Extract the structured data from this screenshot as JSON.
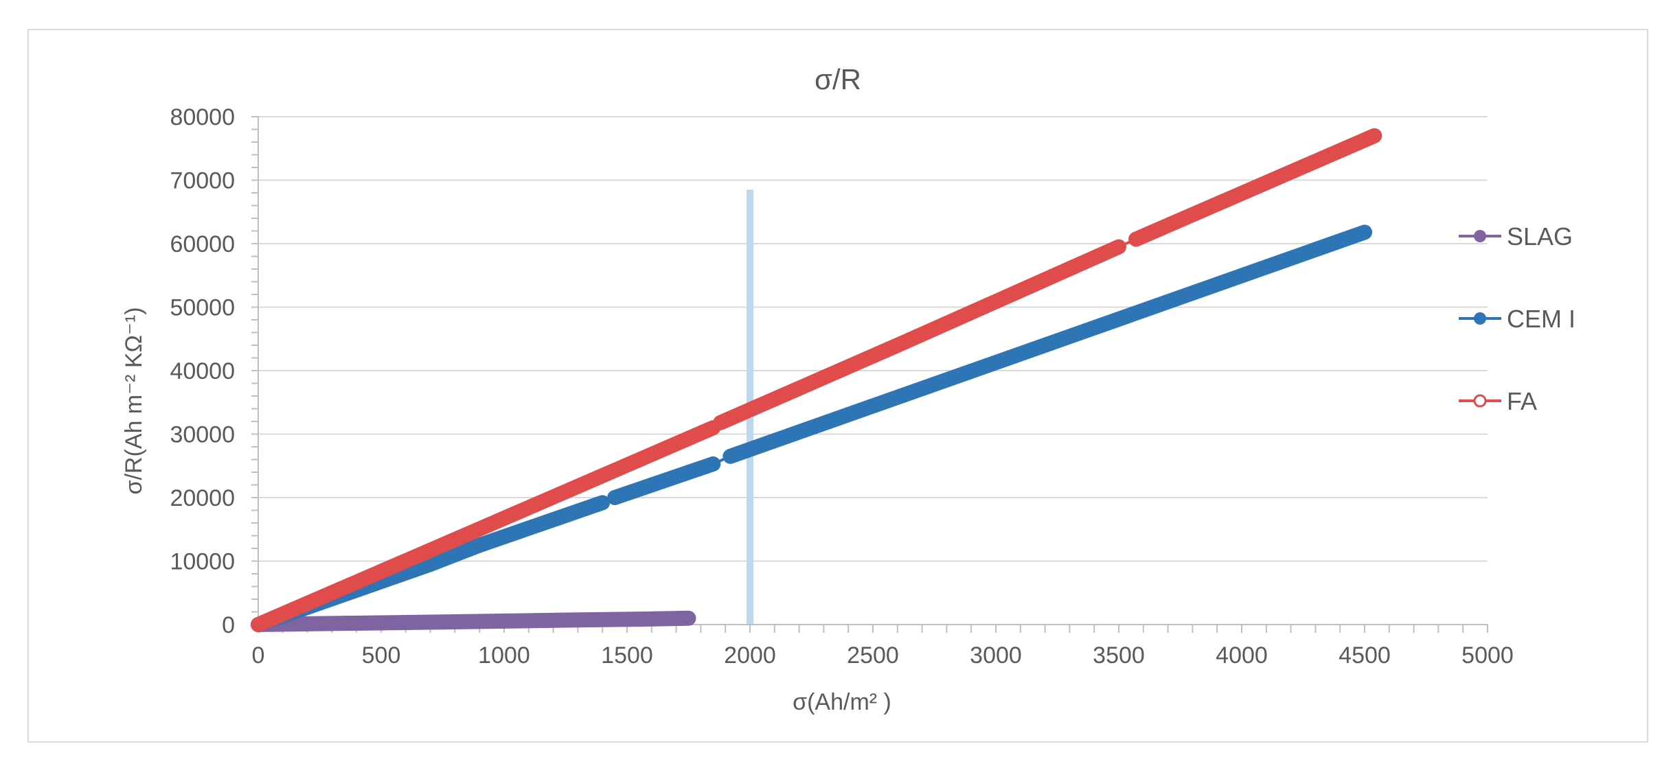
{
  "chart_data": {
    "type": "scatter",
    "title": "σ/R",
    "xlabel": "σ(Ah/m² )",
    "ylabel": "σ/R(Ah m⁻² KΩ⁻¹)",
    "xlim": [
      0,
      5000
    ],
    "ylim": [
      0,
      80000
    ],
    "x_ticks": [
      0,
      500,
      1000,
      1500,
      2000,
      2500,
      3000,
      3500,
      4000,
      4500,
      5000
    ],
    "y_ticks": [
      0,
      10000,
      20000,
      30000,
      40000,
      50000,
      60000,
      70000,
      80000
    ],
    "x_tick_labels": [
      "0",
      "500",
      "1000",
      "1500",
      "2000",
      "2500",
      "3000",
      "3500",
      "4000",
      "4500",
      "5000"
    ],
    "y_tick_labels": [
      "0",
      "10000",
      "20000",
      "30000",
      "40000",
      "50000",
      "60000",
      "70000",
      "80000"
    ],
    "grid": "horizontal",
    "legend_position": "right",
    "reference_line": {
      "x": 2000,
      "y_range": [
        0,
        68500
      ],
      "color": "#bdd7ee"
    },
    "series": [
      {
        "name": "SLAG",
        "color": "#8064a2",
        "marker": "filled-circle",
        "segments": [
          {
            "x": [
              0,
              350
            ],
            "y": [
              0,
              200
            ]
          },
          {
            "x": [
              350,
              750
            ],
            "y": [
              200,
              400
            ]
          },
          {
            "x": [
              750,
              1000
            ],
            "y": [
              400,
              550
            ]
          },
          {
            "x": [
              1000,
              1250
            ],
            "y": [
              550,
              700
            ]
          },
          {
            "x": [
              1250,
              1550
            ],
            "y": [
              700,
              850
            ]
          },
          {
            "x": [
              1550,
              1750
            ],
            "y": [
              850,
              1000
            ]
          }
        ]
      },
      {
        "name": "CEM I",
        "color": "#2e75b6",
        "marker": "filled-circle",
        "segments": [
          {
            "x": [
              0,
              700
            ],
            "y": [
              0,
              9500
            ]
          },
          {
            "x": [
              700,
              900
            ],
            "y": [
              9500,
              12500
            ]
          },
          {
            "x": [
              900,
              1400
            ],
            "y": [
              12500,
              19200
            ]
          },
          {
            "x": [
              1450,
              1850
            ],
            "y": [
              20000,
              25300
            ]
          },
          {
            "x": [
              1920,
              4500
            ],
            "y": [
              26500,
              61800
            ]
          }
        ]
      },
      {
        "name": "FA",
        "color": "#e04c4b",
        "marker": "open-circle",
        "segments": [
          {
            "x": [
              0,
              550
            ],
            "y": [
              0,
              9200
            ]
          },
          {
            "x": [
              550,
              1850
            ],
            "y": [
              9200,
              31000
            ]
          },
          {
            "x": [
              1880,
              2600
            ],
            "y": [
              31800,
              44000
            ]
          },
          {
            "x": [
              2600,
              3500
            ],
            "y": [
              44000,
              59500
            ]
          },
          {
            "x": [
              3570,
              4540
            ],
            "y": [
              60700,
              77000
            ]
          }
        ]
      }
    ]
  }
}
